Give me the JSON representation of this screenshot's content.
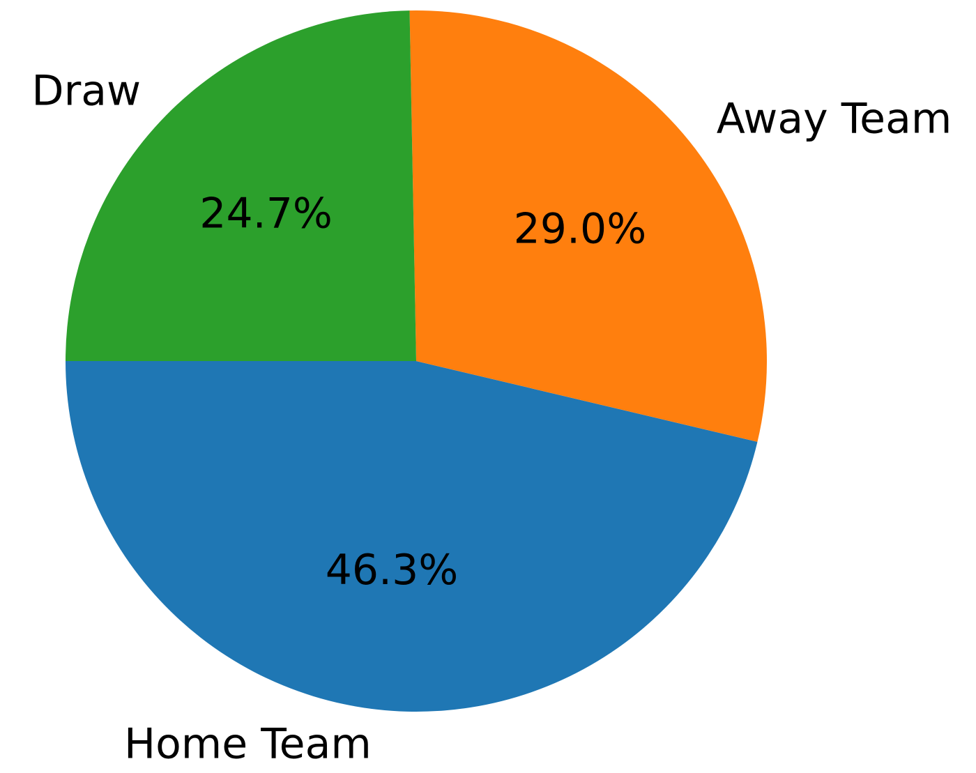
{
  "chart_data": {
    "type": "pie",
    "slices": [
      {
        "label": "Home Team",
        "value": 46.3,
        "pct_label": "46.3%",
        "color": "#1f77b4"
      },
      {
        "label": "Away Team",
        "value": 29.0,
        "pct_label": "29.0%",
        "color": "#ff7f0e"
      },
      {
        "label": "Draw",
        "value": 24.7,
        "pct_label": "24.7%",
        "color": "#2ca02c"
      }
    ],
    "start_angle_deg": 180,
    "direction": "counterclockwise"
  }
}
